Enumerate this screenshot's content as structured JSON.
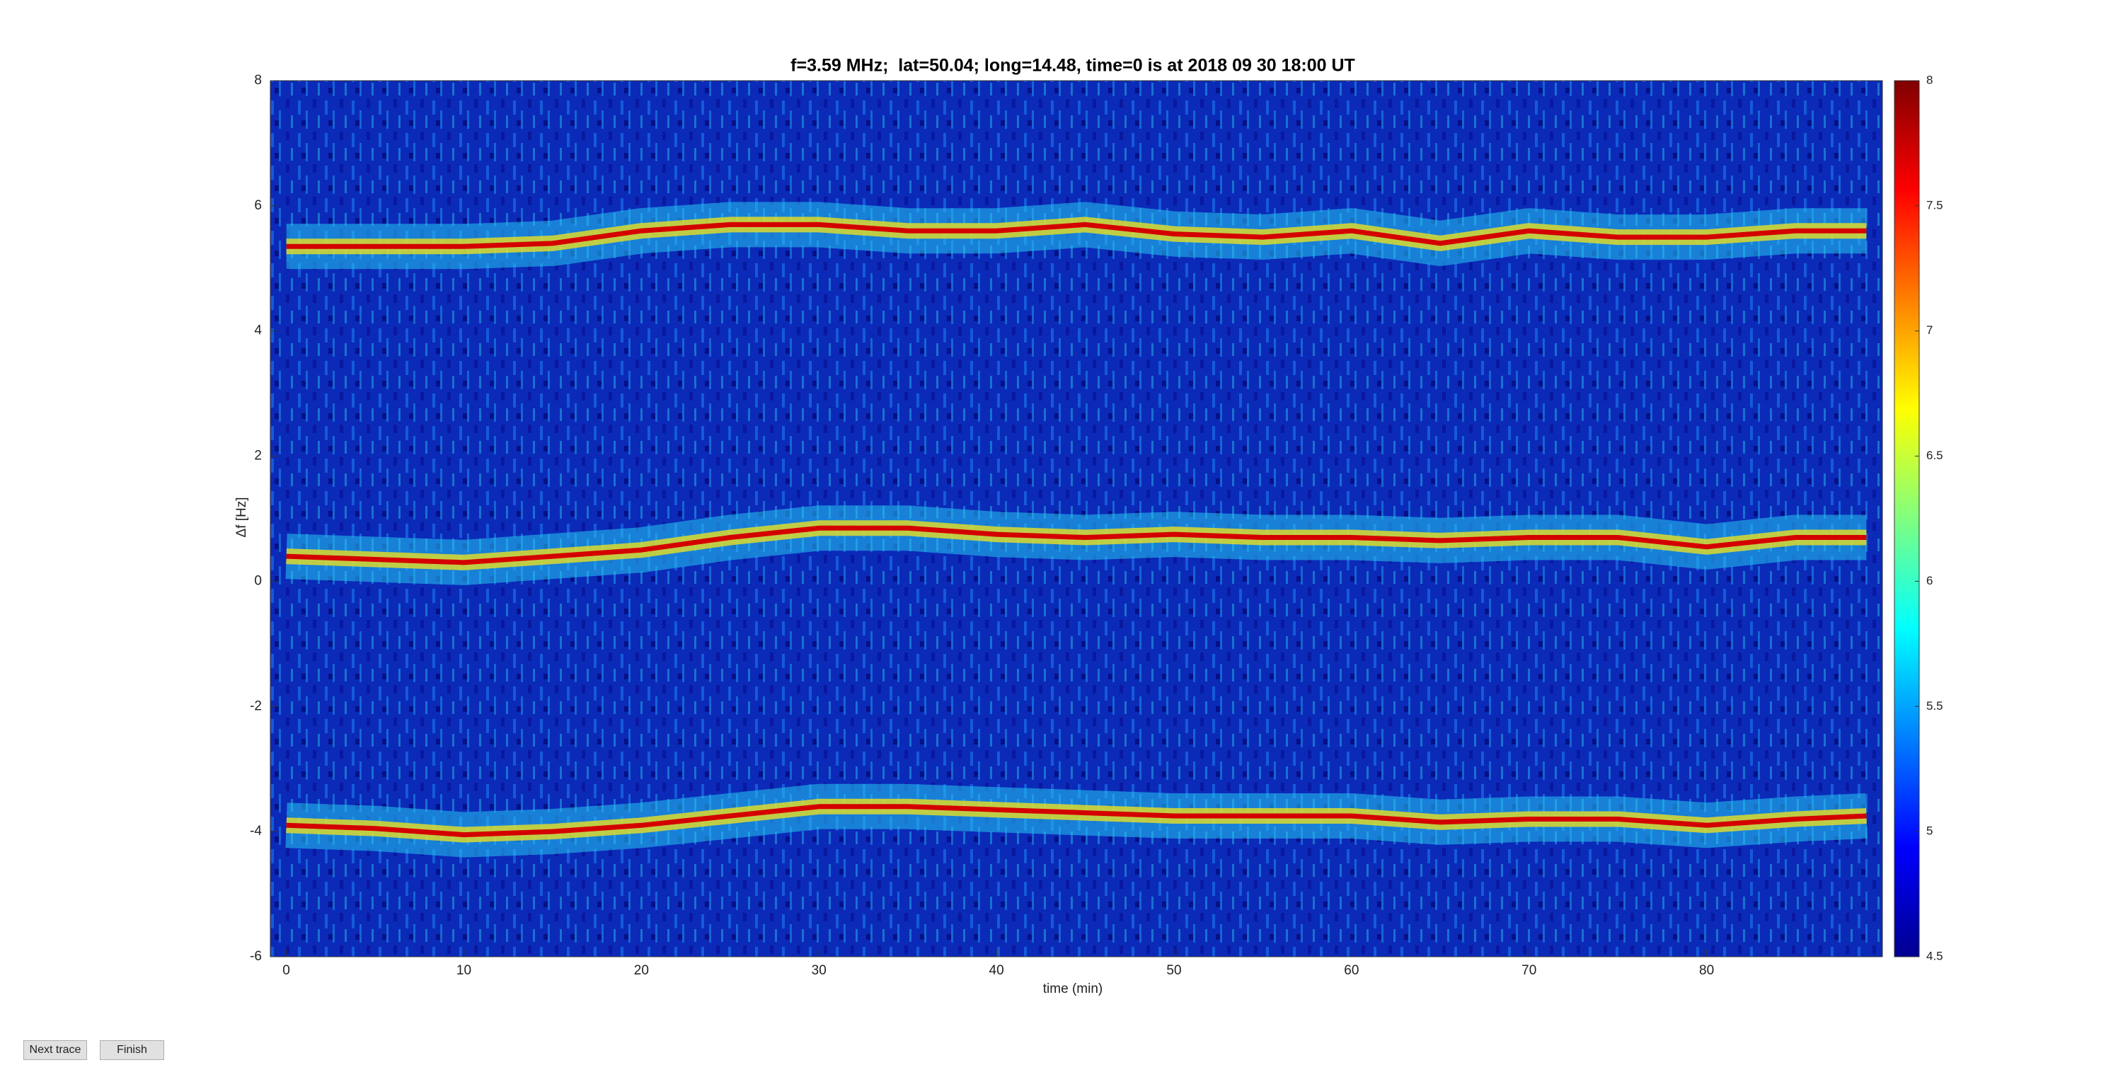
{
  "chart_data": {
    "type": "spectrogram",
    "title": "f=3.59 MHz;  lat=50.04; long=14.48, time=0 is at 2018 09 30 18:00 UT",
    "x_label": "time (min)",
    "y_label": "Δf [Hz]",
    "x": [
      0,
      5,
      10,
      15,
      20,
      25,
      30,
      35,
      40,
      45,
      50,
      55,
      60,
      65,
      70,
      75,
      80,
      85,
      89
    ],
    "series": [
      {
        "color": "#d40000",
        "values": [
          5.35,
          5.35,
          5.35,
          5.4,
          5.6,
          5.7,
          5.7,
          5.6,
          5.6,
          5.7,
          5.55,
          5.5,
          5.6,
          5.4,
          5.6,
          5.5,
          5.5,
          5.6,
          5.6
        ]
      },
      {
        "color": "#d40000",
        "values": [
          0.4,
          0.35,
          0.3,
          0.4,
          0.5,
          0.7,
          0.85,
          0.85,
          0.75,
          0.7,
          0.75,
          0.7,
          0.7,
          0.65,
          0.7,
          0.7,
          0.55,
          0.7,
          0.7
        ]
      },
      {
        "color": "#d40000",
        "values": [
          -3.9,
          -3.95,
          -4.05,
          -4.0,
          -3.9,
          -3.75,
          -3.6,
          -3.6,
          -3.65,
          -3.7,
          -3.75,
          -3.75,
          -3.75,
          -3.85,
          -3.8,
          -3.8,
          -3.9,
          -3.8,
          -3.75
        ]
      }
    ],
    "xlim": [
      -0.9,
      89.9
    ],
    "ylim": [
      -6,
      8
    ],
    "xticks": [
      0,
      10,
      20,
      30,
      40,
      50,
      60,
      70,
      80
    ],
    "yticks": [
      -6,
      -4,
      -2,
      0,
      2,
      4,
      6,
      8
    ],
    "colormap": "jet",
    "clim": [
      4.5,
      8
    ],
    "cticks": [
      4.5,
      5,
      5.5,
      6,
      6.5,
      7,
      7.5,
      8
    ]
  },
  "buttons": [
    "Next trace",
    "Finish"
  ]
}
